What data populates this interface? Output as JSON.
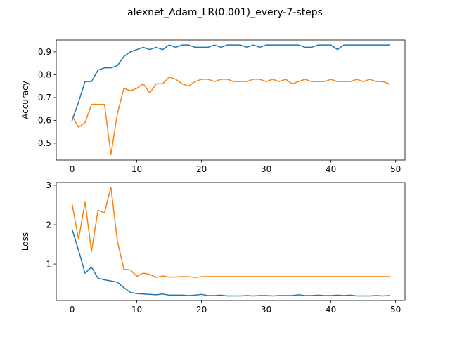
{
  "chart_data": {
    "type": "line",
    "title": "alexnet_Adam_LR(0.001)_every-7-steps",
    "colors": {
      "series_1": "#1f77b4",
      "series_2": "#ff7f0e"
    },
    "grid": false,
    "subplots": [
      {
        "id": "accuracy",
        "ylabel": "Accuracy",
        "xlabel": "",
        "xlim": [
          -2.45,
          51.45
        ],
        "ylim": [
          0.426,
          0.952
        ],
        "xticks": [
          0,
          10,
          20,
          30,
          40,
          50
        ],
        "yticks": [
          0.5,
          0.6,
          0.7,
          0.8,
          0.9
        ],
        "ytick_labels": [
          "0.5",
          "0.6",
          "0.7",
          "0.8",
          "0.9"
        ],
        "series": [
          {
            "color": "#1f77b4",
            "x": [
              0,
              1,
              2,
              3,
              4,
              5,
              6,
              7,
              8,
              9,
              10,
              11,
              12,
              13,
              14,
              15,
              16,
              17,
              18,
              19,
              20,
              21,
              22,
              23,
              24,
              25,
              26,
              27,
              28,
              29,
              30,
              31,
              32,
              33,
              34,
              35,
              36,
              37,
              38,
              39,
              40,
              41,
              42,
              43,
              44,
              45,
              46,
              47,
              48,
              49
            ],
            "values": [
              0.6,
              0.68,
              0.77,
              0.77,
              0.82,
              0.83,
              0.83,
              0.84,
              0.88,
              0.9,
              0.91,
              0.92,
              0.91,
              0.92,
              0.91,
              0.93,
              0.92,
              0.93,
              0.93,
              0.92,
              0.92,
              0.92,
              0.93,
              0.92,
              0.93,
              0.93,
              0.93,
              0.92,
              0.93,
              0.92,
              0.93,
              0.93,
              0.93,
              0.93,
              0.93,
              0.93,
              0.92,
              0.92,
              0.93,
              0.93,
              0.93,
              0.91,
              0.93,
              0.93,
              0.93,
              0.93,
              0.93,
              0.93,
              0.93,
              0.93
            ]
          },
          {
            "color": "#ff7f0e",
            "x": [
              0,
              1,
              2,
              3,
              4,
              5,
              6,
              7,
              8,
              9,
              10,
              11,
              12,
              13,
              14,
              15,
              16,
              17,
              18,
              19,
              20,
              21,
              22,
              23,
              24,
              25,
              26,
              27,
              28,
              29,
              30,
              31,
              32,
              33,
              34,
              35,
              36,
              37,
              38,
              39,
              40,
              41,
              42,
              43,
              44,
              45,
              46,
              47,
              48,
              49
            ],
            "values": [
              0.62,
              0.57,
              0.59,
              0.67,
              0.67,
              0.67,
              0.45,
              0.63,
              0.74,
              0.73,
              0.74,
              0.76,
              0.72,
              0.76,
              0.76,
              0.79,
              0.78,
              0.76,
              0.75,
              0.77,
              0.78,
              0.78,
              0.77,
              0.78,
              0.78,
              0.77,
              0.77,
              0.77,
              0.78,
              0.78,
              0.77,
              0.78,
              0.77,
              0.78,
              0.76,
              0.77,
              0.78,
              0.77,
              0.77,
              0.77,
              0.78,
              0.77,
              0.77,
              0.77,
              0.78,
              0.77,
              0.78,
              0.77,
              0.77,
              0.76
            ]
          }
        ]
      },
      {
        "id": "loss",
        "ylabel": "Loss",
        "xlabel": "",
        "xlim": [
          -2.45,
          51.45
        ],
        "ylim": [
          0.075,
          3.07
        ],
        "xticks": [
          0,
          10,
          20,
          30,
          40,
          50
        ],
        "yticks": [
          1,
          2,
          3
        ],
        "ytick_labels": [
          "1",
          "2",
          "3"
        ],
        "series": [
          {
            "color": "#1f77b4",
            "x": [
              0,
              1,
              2,
              3,
              4,
              5,
              6,
              7,
              8,
              9,
              10,
              11,
              12,
              13,
              14,
              15,
              16,
              17,
              18,
              19,
              20,
              21,
              22,
              23,
              24,
              25,
              26,
              27,
              28,
              29,
              30,
              31,
              32,
              33,
              34,
              35,
              36,
              37,
              38,
              39,
              40,
              41,
              42,
              43,
              44,
              45,
              46,
              47,
              48,
              49
            ],
            "values": [
              1.88,
              1.35,
              0.77,
              0.92,
              0.64,
              0.6,
              0.57,
              0.54,
              0.4,
              0.28,
              0.25,
              0.24,
              0.23,
              0.22,
              0.24,
              0.21,
              0.21,
              0.21,
              0.2,
              0.21,
              0.23,
              0.2,
              0.2,
              0.21,
              0.19,
              0.19,
              0.19,
              0.2,
              0.19,
              0.2,
              0.2,
              0.19,
              0.2,
              0.2,
              0.2,
              0.22,
              0.2,
              0.2,
              0.21,
              0.2,
              0.2,
              0.21,
              0.2,
              0.21,
              0.19,
              0.19,
              0.19,
              0.2,
              0.19,
              0.2
            ]
          },
          {
            "color": "#ff7f0e",
            "x": [
              0,
              1,
              2,
              3,
              4,
              5,
              6,
              7,
              8,
              9,
              10,
              11,
              12,
              13,
              14,
              15,
              16,
              17,
              18,
              19,
              20,
              21,
              22,
              23,
              24,
              25,
              26,
              27,
              28,
              29,
              30,
              31,
              32,
              33,
              34,
              35,
              36,
              37,
              38,
              39,
              40,
              41,
              42,
              43,
              44,
              45,
              46,
              47,
              48,
              49
            ],
            "values": [
              2.52,
              1.63,
              2.57,
              1.32,
              2.37,
              2.3,
              2.95,
              1.58,
              0.87,
              0.85,
              0.69,
              0.77,
              0.74,
              0.66,
              0.7,
              0.67,
              0.67,
              0.68,
              0.68,
              0.66,
              0.68,
              0.68,
              0.68,
              0.68,
              0.68,
              0.68,
              0.68,
              0.68,
              0.68,
              0.68,
              0.68,
              0.68,
              0.68,
              0.68,
              0.68,
              0.68,
              0.68,
              0.68,
              0.68,
              0.68,
              0.68,
              0.68,
              0.68,
              0.68,
              0.68,
              0.68,
              0.68,
              0.68,
              0.68,
              0.68
            ]
          }
        ]
      }
    ]
  }
}
